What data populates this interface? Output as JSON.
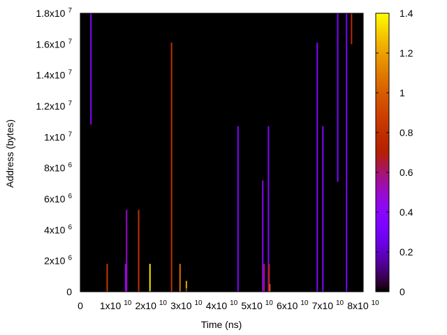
{
  "chart_data": {
    "type": "heatmap",
    "title": "",
    "xlabel": "Time (ns)",
    "ylabel": "Address (bytes)",
    "xlim": [
      0,
      80000000000
    ],
    "ylim": [
      0,
      18000000
    ],
    "background_color": "#000000",
    "grid": false,
    "colormap": "gnuplot pm3d black-blue-magenta-red-orange-yellow",
    "colorbar": {
      "range": [
        0,
        1.4
      ],
      "position": "right",
      "ticks": [
        {
          "value": 0,
          "label": "0"
        },
        {
          "value": 0.2,
          "label": "0.2"
        },
        {
          "value": 0.4,
          "label": "0.4"
        },
        {
          "value": 0.6,
          "label": "0.6"
        },
        {
          "value": 0.8,
          "label": "0.8"
        },
        {
          "value": 1.0,
          "label": "1"
        },
        {
          "value": 1.2,
          "label": "1.2"
        },
        {
          "value": 1.4,
          "label": "1.4"
        }
      ]
    },
    "x_ticks": [
      {
        "value": 0,
        "base": "0",
        "exp": ""
      },
      {
        "value": 10000000000,
        "base": "1x10",
        "exp": "10"
      },
      {
        "value": 20000000000,
        "base": "2x10",
        "exp": "10"
      },
      {
        "value": 30000000000,
        "base": "3x10",
        "exp": "10"
      },
      {
        "value": 40000000000,
        "base": "4x10",
        "exp": "10"
      },
      {
        "value": 50000000000,
        "base": "5x10",
        "exp": "10"
      },
      {
        "value": 60000000000,
        "base": "6x10",
        "exp": "10"
      },
      {
        "value": 70000000000,
        "base": "7x10",
        "exp": "10"
      },
      {
        "value": 80000000000,
        "base": "8x10",
        "exp": "10"
      }
    ],
    "y_ticks": [
      {
        "value": 0,
        "base": "0",
        "exp": ""
      },
      {
        "value": 2000000,
        "base": "2x10",
        "exp": "6"
      },
      {
        "value": 4000000,
        "base": "4x10",
        "exp": "6"
      },
      {
        "value": 6000000,
        "base": "6x10",
        "exp": "6"
      },
      {
        "value": 8000000,
        "base": "8x10",
        "exp": "6"
      },
      {
        "value": 10000000,
        "base": "1x10",
        "exp": "7"
      },
      {
        "value": 12000000,
        "base": "1.2x10",
        "exp": "7"
      },
      {
        "value": 14000000,
        "base": "1.4x10",
        "exp": "7"
      },
      {
        "value": 16000000,
        "base": "1.6x10",
        "exp": "7"
      },
      {
        "value": 18000000,
        "base": "1.8x10",
        "exp": "7"
      }
    ],
    "segments": [
      {
        "t": 3000000000,
        "y0": 10800000,
        "y1": 18000000,
        "value": 0.35
      },
      {
        "t": 7600000000,
        "y0": 0,
        "y1": 1800000,
        "value": 0.85
      },
      {
        "t": 12800000000,
        "y0": 0,
        "y1": 1800000,
        "value": 0.45
      },
      {
        "t": 13100000000,
        "y0": 0,
        "y1": 5300000,
        "value": 0.5
      },
      {
        "t": 16500000000,
        "y0": 0,
        "y1": 5300000,
        "value": 0.8
      },
      {
        "t": 19700000000,
        "y0": 0,
        "y1": 1800000,
        "value": 1.35
      },
      {
        "t": 25800000000,
        "y0": 0,
        "y1": 16100000,
        "value": 0.8
      },
      {
        "t": 28200000000,
        "y0": 0,
        "y1": 1800000,
        "value": 1.05
      },
      {
        "t": 30000000000,
        "y0": 0,
        "y1": 700000,
        "value": 1.2
      },
      {
        "t": 44600000000,
        "y0": 0,
        "y1": 10700000,
        "value": 0.35
      },
      {
        "t": 51600000000,
        "y0": 0,
        "y1": 7200000,
        "value": 0.4
      },
      {
        "t": 52000000000,
        "y0": 0,
        "y1": 1800000,
        "value": 0.6
      },
      {
        "t": 53200000000,
        "y0": 0,
        "y1": 10700000,
        "value": 0.35
      },
      {
        "t": 53400000000,
        "y0": 0,
        "y1": 1800000,
        "value": 0.75
      },
      {
        "t": 53600000000,
        "y0": 0,
        "y1": 500000,
        "value": 0.95
      },
      {
        "t": 67000000000,
        "y0": 0,
        "y1": 16100000,
        "value": 0.35
      },
      {
        "t": 68600000000,
        "y0": 0,
        "y1": 10700000,
        "value": 0.35
      },
      {
        "t": 72800000000,
        "y0": 7100000,
        "y1": 18000000,
        "value": 0.35
      },
      {
        "t": 75300000000,
        "y0": 0,
        "y1": 18000000,
        "value": 0.3
      },
      {
        "t": 76700000000,
        "y0": 16000000,
        "y1": 18000000,
        "value": 0.75
      }
    ]
  }
}
